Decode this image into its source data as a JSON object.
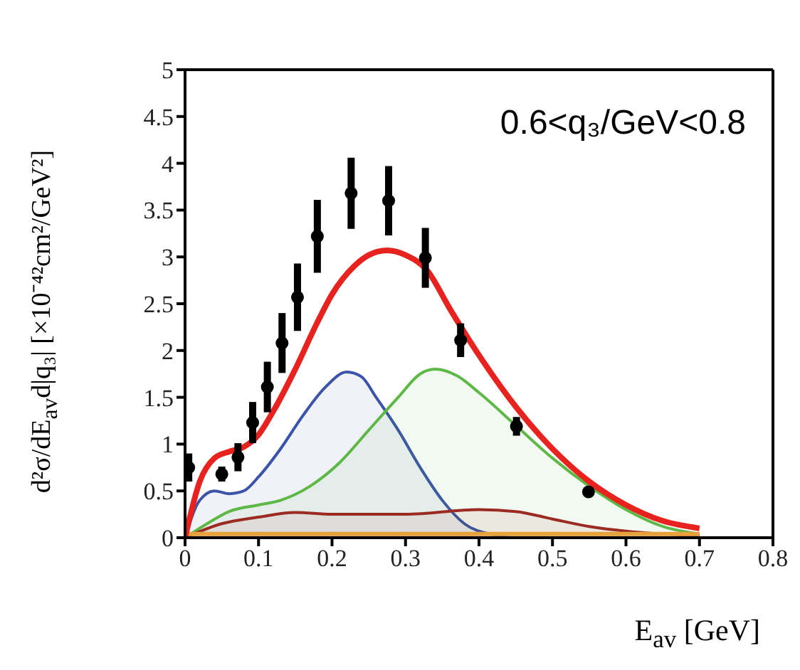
{
  "chart_data": {
    "type": "line",
    "xlabel": "E$_{av}$ [GeV]",
    "ylabel": "d²σ/dE$_{av}$d|q₃| [×10⁻⁴²cm²/GeV²]",
    "annotations": [
      "0.6<q₃/GeV<0.8"
    ],
    "xlim": [
      0,
      0.8
    ],
    "xticks": [
      0,
      0.1,
      0.2,
      0.3,
      0.4,
      0.5,
      0.6,
      0.7,
      0.8
    ],
    "ylim": [
      0,
      5
    ],
    "yticks": [
      0,
      0.5,
      1,
      1.5,
      2,
      2.5,
      3,
      3.5,
      4,
      4.5,
      5
    ],
    "grid": false,
    "legend": false,
    "series": [
      {
        "type": "area",
        "color": "#3b53a8",
        "x": [
          0,
          0.02,
          0.04,
          0.06,
          0.08,
          0.1,
          0.13,
          0.16,
          0.19,
          0.22,
          0.24,
          0.26,
          0.29,
          0.32,
          0.35,
          0.38,
          0.42,
          0.45,
          0.7
        ],
        "values": [
          0,
          0.4,
          0.5,
          0.47,
          0.5,
          0.65,
          0.95,
          1.3,
          1.6,
          1.77,
          1.72,
          1.5,
          1.15,
          0.75,
          0.4,
          0.15,
          0.03,
          0,
          0
        ]
      },
      {
        "type": "area",
        "color": "#5db846",
        "x": [
          0,
          0.03,
          0.06,
          0.1,
          0.13,
          0.17,
          0.21,
          0.25,
          0.29,
          0.32,
          0.34,
          0.37,
          0.4,
          0.45,
          0.5,
          0.55,
          0.6,
          0.65,
          0.7
        ],
        "values": [
          0,
          0.15,
          0.28,
          0.35,
          0.4,
          0.55,
          0.8,
          1.15,
          1.5,
          1.75,
          1.8,
          1.73,
          1.55,
          1.2,
          0.85,
          0.55,
          0.3,
          0.12,
          0.04
        ]
      },
      {
        "type": "area",
        "color": "#9b2b22",
        "x": [
          0,
          0.05,
          0.1,
          0.15,
          0.2,
          0.3,
          0.4,
          0.45,
          0.5,
          0.55,
          0.6,
          0.7
        ],
        "values": [
          0,
          0.15,
          0.22,
          0.27,
          0.25,
          0.25,
          0.3,
          0.28,
          0.2,
          0.12,
          0.07,
          0.02
        ]
      },
      {
        "type": "line",
        "color": "#e8a23c",
        "x": [
          0,
          0.1,
          0.2,
          0.3,
          0.4,
          0.5,
          0.6,
          0.7
        ],
        "values": [
          0.04,
          0.04,
          0.04,
          0.04,
          0.04,
          0.04,
          0.04,
          0.04
        ]
      },
      {
        "color": "#e8231f",
        "x": [
          0,
          0.02,
          0.04,
          0.06,
          0.08,
          0.1,
          0.12,
          0.15,
          0.18,
          0.2,
          0.23,
          0.25,
          0.275,
          0.3,
          0.33,
          0.36,
          0.4,
          0.45,
          0.5,
          0.55,
          0.6,
          0.65,
          0.7
        ],
        "values": [
          0,
          0.6,
          0.85,
          0.92,
          0.97,
          1.1,
          1.35,
          1.8,
          2.3,
          2.6,
          2.9,
          3.02,
          3.07,
          3.02,
          2.85,
          2.45,
          1.95,
          1.4,
          0.95,
          0.6,
          0.35,
          0.18,
          0.1
        ]
      },
      {
        "type": "scatter",
        "marker": "circle",
        "color": "#000000",
        "x": [
          0.005,
          0.05,
          0.072,
          0.092,
          0.112,
          0.132,
          0.153,
          0.18,
          0.226,
          0.277,
          0.327,
          0.375,
          0.451,
          0.549
        ],
        "values": [
          0.75,
          0.68,
          0.86,
          1.23,
          1.61,
          2.08,
          2.57,
          3.22,
          3.68,
          3.6,
          2.99,
          2.11,
          1.19,
          0.49
        ],
        "errors": [
          0.15,
          0.08,
          0.15,
          0.22,
          0.27,
          0.32,
          0.36,
          0.39,
          0.38,
          0.37,
          0.32,
          0.18,
          0.1,
          0.05
        ]
      }
    ]
  }
}
